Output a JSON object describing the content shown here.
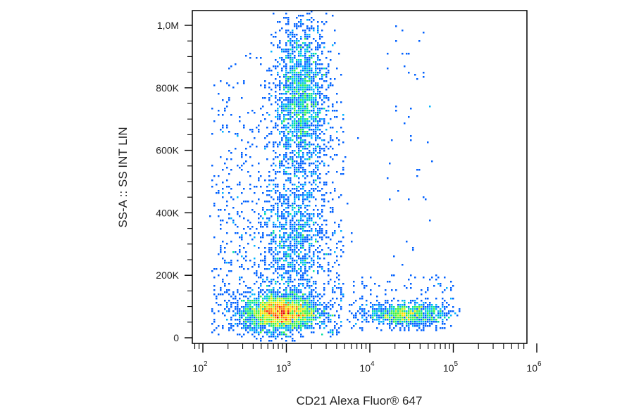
{
  "chart_data": {
    "type": "scatter",
    "subtype": "flow-cytometry density plot (pseudocolor)",
    "title": "",
    "xlabel": "CD21 Alexa Fluor® 647",
    "ylabel": "SS-A :: SS INT LIN",
    "x_scale": "log",
    "y_scale": "linear",
    "xlim": [
      60,
      1500000
    ],
    "ylim": [
      0,
      1050000
    ],
    "grid": false,
    "legend": "none",
    "x_ticks": [
      {
        "value": 100,
        "base": "10",
        "exp": "2"
      },
      {
        "value": 1000,
        "base": "10",
        "exp": "3"
      },
      {
        "value": 10000,
        "base": "10",
        "exp": "4"
      },
      {
        "value": 100000,
        "base": "10",
        "exp": "5"
      },
      {
        "value": 1000000,
        "base": "10",
        "exp": "6"
      }
    ],
    "y_ticks": [
      {
        "value": 0,
        "label": "0"
      },
      {
        "value": 200000,
        "label": "200K"
      },
      {
        "value": 400000,
        "label": "400K"
      },
      {
        "value": 600000,
        "label": "600K"
      },
      {
        "value": 800000,
        "label": "800K"
      },
      {
        "value": 1000000,
        "label": "1,0M"
      }
    ],
    "colormap": [
      "#0000ff",
      "#0060ff",
      "#00b4ff",
      "#00e0a0",
      "#40f040",
      "#c0f020",
      "#ffe000",
      "#ff8000",
      "#ff2000",
      "#d00000"
    ],
    "populations": [
      {
        "x_center": 850,
        "y_center": 80000,
        "x_spread_decades": 0.22,
        "y_spread": 28000,
        "relative_density": 1.0
      },
      {
        "x_center": 1500,
        "y_center": 760000,
        "x_spread_decades": 0.16,
        "y_spread": 130000,
        "relative_density": 0.6
      },
      {
        "x_center": 1200,
        "y_center": 300000,
        "x_spread_decades": 0.2,
        "y_spread": 110000,
        "relative_density": 0.25
      },
      {
        "x_center": 28000,
        "y_center": 75000,
        "x_spread_decades": 0.23,
        "y_spread": 18000,
        "relative_density": 0.25
      }
    ]
  }
}
